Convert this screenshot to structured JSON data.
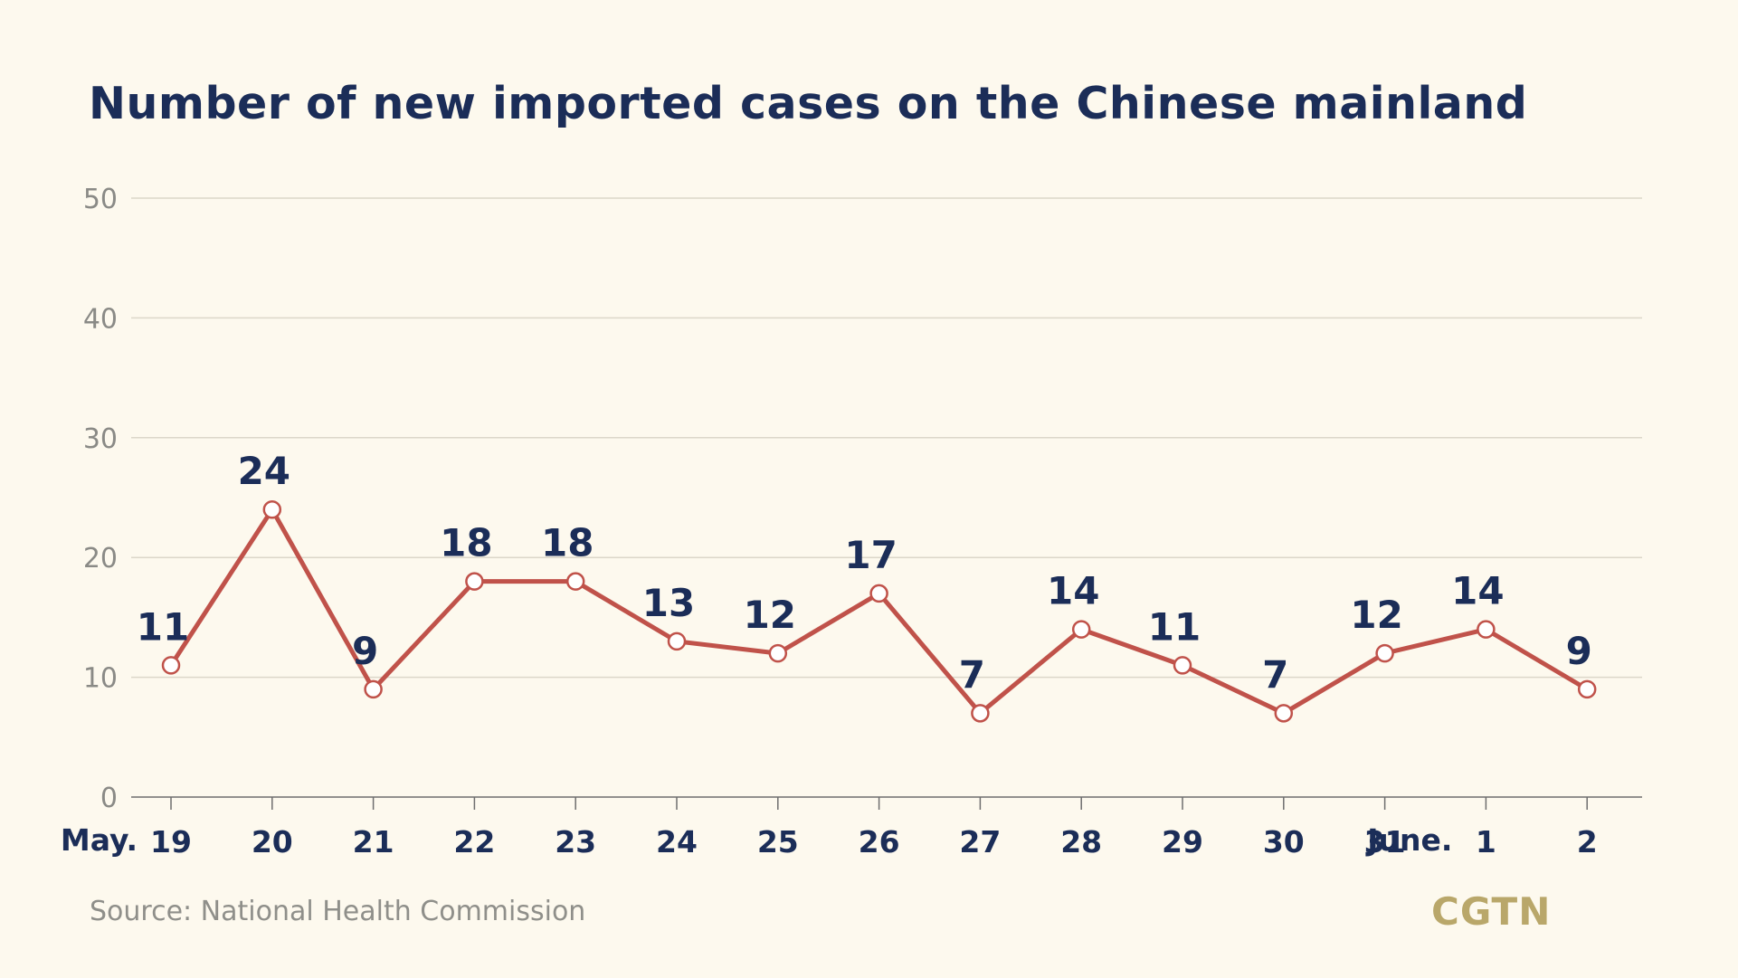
{
  "colors": {
    "background": "#FDF9EE",
    "line": "#C0524A",
    "text_dark": "#1B2D58",
    "gridline": "#DCD7C9",
    "axis_text": "#8A8A86",
    "logo": "#B9A76A"
  },
  "source": "Source: National Health Commission",
  "logo": "CGTN",
  "chart_data": {
    "type": "line",
    "title": "Number of new imported cases on the Chinese mainland",
    "xlabel": "",
    "ylabel": "",
    "ylim": [
      0,
      50
    ],
    "yticks": [
      "0",
      "10",
      "20",
      "30",
      "40",
      "50"
    ],
    "grid": true,
    "month_labels": [
      {
        "label": "May.",
        "at_index": 0
      },
      {
        "label": "June.",
        "at_index": 13
      }
    ],
    "categories": [
      "19",
      "20",
      "21",
      "22",
      "23",
      "24",
      "25",
      "26",
      "27",
      "28",
      "29",
      "30",
      "31",
      "1",
      "2"
    ],
    "values": [
      11,
      24,
      9,
      18,
      18,
      13,
      12,
      17,
      7,
      14,
      11,
      7,
      12,
      14,
      9
    ],
    "data_labels": [
      "11",
      "24",
      "9",
      "18",
      "18",
      "13",
      "12",
      "17",
      "7",
      "14",
      "11",
      "7",
      "12",
      "14",
      "9"
    ]
  }
}
